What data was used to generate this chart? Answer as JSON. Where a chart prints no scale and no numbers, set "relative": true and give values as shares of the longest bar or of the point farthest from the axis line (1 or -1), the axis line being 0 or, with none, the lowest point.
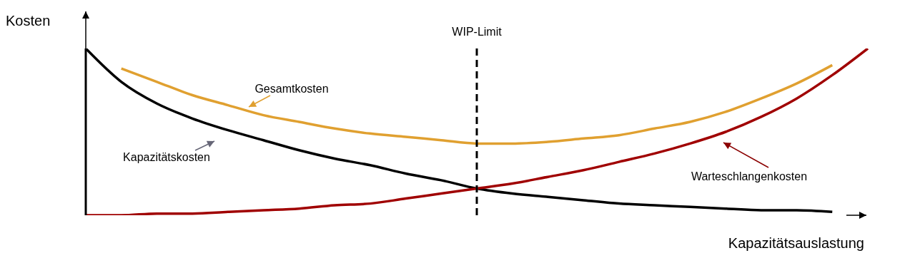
{
  "chart_data": {
    "type": "line",
    "relative": true,
    "xlabel": "Kapazitätsauslastung",
    "ylabel": "Kosten",
    "categories": [
      null,
      null,
      null,
      null,
      null,
      null,
      null,
      null,
      null,
      null,
      null,
      null,
      null,
      null,
      null,
      null,
      null,
      null,
      null,
      null,
      null,
      null,
      null
    ],
    "series": [
      {
        "name": "Gesamtkosten",
        "color": "#e0a030",
        "values": [
          null,
          0.88,
          0.8,
          0.72,
          0.66,
          0.6,
          0.56,
          0.52,
          0.49,
          0.47,
          0.45,
          0.43,
          0.43,
          0.44,
          0.46,
          0.48,
          0.52,
          0.56,
          0.62,
          0.7,
          0.79,
          0.9,
          null
        ]
      },
      {
        "name": "Kapazitätskosten",
        "color": "#000000",
        "values": [
          1,
          0.8,
          0.67,
          0.58,
          0.51,
          0.45,
          0.39,
          0.34,
          0.3,
          0.25,
          0.21,
          0.16,
          0.13,
          0.11,
          0.09,
          0.07,
          0.06,
          0.05,
          0.04,
          0.03,
          0.03,
          0.02,
          null
        ]
      },
      {
        "name": "Warteschlangenkosten",
        "color": "#a00000",
        "values": [
          0,
          0,
          0.01,
          0.01,
          0.02,
          0.03,
          0.04,
          0.06,
          0.07,
          0.1,
          0.13,
          0.16,
          0.19,
          0.23,
          0.27,
          0.32,
          0.37,
          0.43,
          0.5,
          0.59,
          0.7,
          0.84,
          1
        ]
      }
    ],
    "annotations": [
      "WIP-Limit"
    ],
    "grid": false,
    "marker": "none",
    "line_style": "solid"
  }
}
